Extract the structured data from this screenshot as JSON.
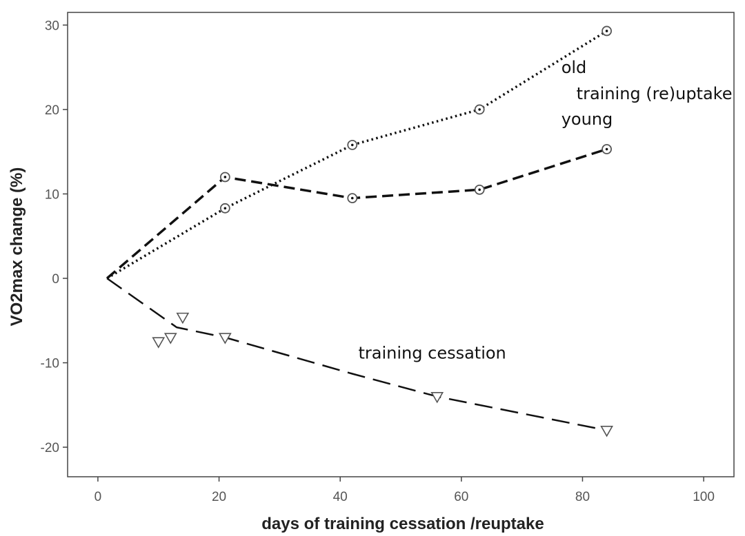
{
  "chart_data": {
    "type": "line",
    "title": "",
    "xlabel": "days of training cessation /reuptake",
    "ylabel": "VO2max change (%)",
    "xlim": [
      -5,
      105
    ],
    "ylim": [
      -23.5,
      31.5
    ],
    "x_ticks": [
      0,
      20,
      40,
      60,
      80,
      100
    ],
    "y_ticks": [
      -20,
      -10,
      0,
      10,
      20,
      30
    ],
    "x_tick_labels": [
      "0",
      "20",
      "40",
      "60",
      "80",
      "100"
    ],
    "y_tick_labels": [
      "-20",
      "-10",
      "0",
      "10",
      "20",
      "30"
    ],
    "grid": false,
    "legend": "none",
    "series": [
      {
        "key": "old",
        "line_style": "dotted",
        "marker": "circle",
        "line": [
          [
            1.5,
            0
          ],
          [
            21,
            8.3
          ],
          [
            42,
            15.8
          ],
          [
            63,
            20
          ],
          [
            84,
            29.3
          ]
        ],
        "points": [
          [
            21,
            8.3
          ],
          [
            42,
            15.8
          ],
          [
            63,
            20
          ],
          [
            84,
            29.3
          ]
        ]
      },
      {
        "key": "young",
        "line_style": "dashed",
        "marker": "circle",
        "line": [
          [
            1.5,
            0
          ],
          [
            21,
            12
          ],
          [
            42,
            9.5
          ],
          [
            63,
            10.5
          ],
          [
            84,
            15.3
          ]
        ],
        "points": [
          [
            21,
            12
          ],
          [
            42,
            9.5
          ],
          [
            63,
            10.5
          ],
          [
            84,
            15.3
          ]
        ]
      },
      {
        "key": "cessation",
        "line_style": "long-dashed",
        "marker": "triangle-down",
        "line": [
          [
            1.5,
            0
          ],
          [
            13,
            -5.8
          ],
          [
            21,
            -7
          ],
          [
            42,
            -11.3
          ],
          [
            56,
            -14
          ],
          [
            84,
            -18
          ]
        ],
        "points": [
          [
            10,
            -7.6
          ],
          [
            12,
            -7.1
          ],
          [
            14,
            -4.7
          ],
          [
            21,
            -7.1
          ],
          [
            56,
            -14.1
          ],
          [
            84,
            -18.1
          ]
        ]
      }
    ],
    "annotations": [
      {
        "text": "old",
        "x": 76.5,
        "y": 24.3
      },
      {
        "text": "training (re)uptake",
        "x": 79,
        "y": 21.2
      },
      {
        "text": "young",
        "x": 76.5,
        "y": 18.2
      },
      {
        "text": "training cessation",
        "x": 43,
        "y": -9.5
      }
    ],
    "colors": {
      "line": "#111111",
      "marker": "#555555",
      "axis": "#444444",
      "tick_label": "#555555"
    }
  }
}
